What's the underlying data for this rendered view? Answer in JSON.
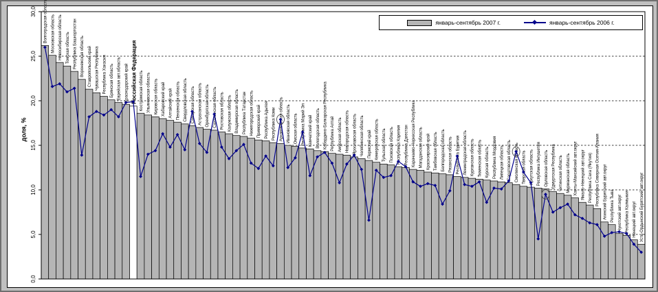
{
  "window": {
    "background": "#c0c0c0"
  },
  "y_axis": {
    "title": "доля, %",
    "ticks": [
      "0,0",
      "5,0",
      "10,0",
      "15,0",
      "20,0",
      "25,0",
      "30,0"
    ],
    "min": 0,
    "max": 30,
    "step": 5
  },
  "legend": {
    "items": [
      {
        "label": "январь-сентябрь 2007 г.",
        "type": "bar",
        "color": "#b5b5b5"
      },
      {
        "label": "январь-сентябрь 2006 г.",
        "type": "line",
        "color": "#00008B"
      }
    ]
  },
  "chart_data": {
    "type": "bar",
    "title": "",
    "xlabel": "",
    "ylabel": "доля, %",
    "ylim": [
      0,
      30
    ],
    "grid": "dashed-horizontal",
    "legend_position": "top",
    "highlight_category": "Российская Федерация",
    "circled_point_indices": [
      32,
      64,
      68
    ],
    "categories": [
      "Волгоградская область",
      "Московская область",
      "Новосибирская область",
      "Томская область",
      "Республика Башкортостан",
      "Воронежская область",
      "Ставропольский край",
      "Чувашская Республика",
      "Республика Хакасия",
      "Брянская область",
      "Еврейская авт.область",
      "Краснодарский край",
      "Российская Федерация",
      "Костромская область",
      "Ульяновская область",
      "Кировская область",
      "Хабаровский край",
      "Алтайский край",
      "Пензенская область",
      "Свердловская область",
      "Самарская область",
      "Астраханская область",
      "Оренбургская область",
      "Сахалинская область",
      "Ростовская область",
      "Калужская область",
      "Владимирская область",
      "Республика Татарстан",
      "Нижегородская область",
      "Приморский край",
      "Республика Адыгея",
      "Республика Коми",
      "Архангельская область",
      "Ивановская область",
      "Омская область",
      "Республика Марий Эл",
      "Камчатский край",
      "Вологодская область",
      "Кабардино-Балкарская Республика",
      "Республика Алтай",
      "Амурская область",
      "Новгородская область",
      "Ярославская область",
      "Челябинская область",
      "Пермский край",
      "Кемеровская область",
      "Тульская область",
      "Псковская область",
      "Республика Карелия",
      "Республика Дагестан",
      "Карачаево-Черкесская Республика",
      "Магаданская область",
      "Красноярский край",
      "Тамбовская область",
      "Белгородская область",
      "Рязанская область",
      "Республика Бурятия",
      "Ленинградская область",
      "Курганская область",
      "Тюменская область",
      "Курская область",
      "Республика Мордовия",
      "Липецкая область",
      "Саратовская область",
      "Смоленская область",
      "Тверская область",
      "Иркутская область",
      "Республика Ингушетия",
      "Орловская область",
      "Удмуртская Республика",
      "Читинская область",
      "Мурманская область",
      "Ханты-Мансийский авт.округ",
      "Ямало-Ненецкий авт.округ",
      "Республика Саха (Якутия)",
      "Республика Северная Осетия-Алания",
      "Агинский Бурятский авт.округ",
      "Республика Тыва",
      "Чукотский авт.округ",
      "Республика Калмыкия",
      "Ненецкий авт.округ",
      "Усть-Ордынский Бурятский авт.округ"
    ],
    "series": [
      {
        "name": "январь-сентябрь 2007 г.",
        "type": "bar",
        "color": "#b5b5b5",
        "values": [
          26.2,
          25.1,
          24.3,
          23.9,
          23.3,
          22.4,
          21.3,
          20.9,
          20.5,
          20.1,
          19.8,
          19.6,
          19.4,
          18.6,
          18.4,
          18.2,
          18.0,
          17.8,
          17.6,
          17.4,
          17.2,
          17.0,
          16.8,
          16.7,
          16.5,
          16.3,
          16.1,
          16.0,
          15.8,
          15.6,
          15.5,
          15.3,
          15.2,
          15.0,
          14.9,
          14.7,
          14.6,
          14.4,
          14.3,
          14.1,
          14.0,
          13.9,
          13.7,
          13.5,
          13.3,
          13.1,
          12.9,
          12.8,
          12.6,
          12.5,
          12.3,
          12.2,
          12.0,
          11.9,
          11.8,
          11.7,
          11.5,
          11.4,
          11.3,
          11.2,
          11.1,
          11.0,
          10.9,
          10.8,
          10.6,
          10.4,
          10.3,
          10.2,
          10.1,
          9.8,
          9.6,
          9.4,
          9.1,
          8.6,
          8.3,
          7.9,
          6.4,
          6.1,
          5.1,
          4.9,
          4.4,
          3.9
        ]
      },
      {
        "name": "январь-сентябрь 2006 г.",
        "type": "line",
        "color": "#00008B",
        "values": [
          26.0,
          21.6,
          21.9,
          21.0,
          21.4,
          13.9,
          18.2,
          18.8,
          18.4,
          19.0,
          18.2,
          19.8,
          19.9,
          11.5,
          14.0,
          14.4,
          16.3,
          14.8,
          16.2,
          14.5,
          18.8,
          15.2,
          14.2,
          18.5,
          14.8,
          13.5,
          14.4,
          15.1,
          13.0,
          12.4,
          13.8,
          12.7,
          17.9,
          12.5,
          13.6,
          16.5,
          11.6,
          13.7,
          14.2,
          13.0,
          10.8,
          12.9,
          13.9,
          12.3,
          6.6,
          12.2,
          11.4,
          11.6,
          13.2,
          12.6,
          10.9,
          10.4,
          10.7,
          10.5,
          8.4,
          9.9,
          13.8,
          10.6,
          10.4,
          10.9,
          8.6,
          10.2,
          10.1,
          11.0,
          14.3,
          12.0,
          10.8,
          4.5,
          9.5,
          7.5,
          8.0,
          8.4,
          7.2,
          6.8,
          6.3,
          6.1,
          4.8,
          5.2,
          5.3,
          5.1,
          3.9,
          3.0
        ]
      }
    ]
  }
}
